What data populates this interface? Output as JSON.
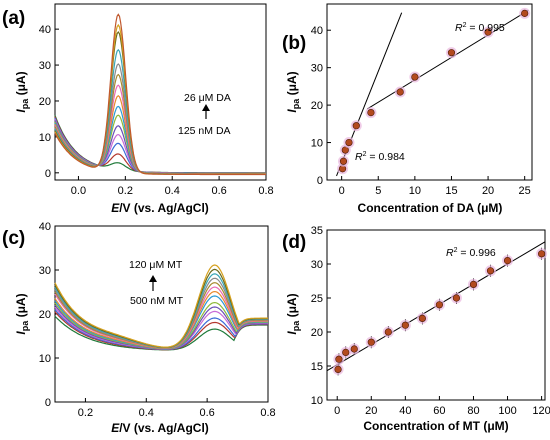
{
  "chart_data": [
    {
      "panel": "(a)",
      "type": "line",
      "xlabel": "E/V (vs. Ag/AgCl)",
      "xlabel_italic": "E",
      "xlabel_rest": "/V (vs. Ag/AgCl)",
      "ylabel": "Ipa (μA)",
      "xlim": [
        -0.1,
        0.8
      ],
      "ylim": [
        -2,
        47
      ],
      "xticks": [
        "0.0",
        "0.2",
        "0.4",
        "0.6",
        "0.8"
      ],
      "yticks": [
        "0",
        "10",
        "20",
        "30",
        "40"
      ],
      "annotations": {
        "top": "26 μM DA",
        "bottom": "125 nM DA"
      },
      "peak_x": 0.17,
      "start_value": 16,
      "colors": [
        "#1f7a3a",
        "#b3372e",
        "#3b6bd6",
        "#c86bd6",
        "#6a4fb6",
        "#8fb93a",
        "#2a9ad6",
        "#e8892e",
        "#e86bb6",
        "#a88a2e",
        "#8a8a8a",
        "#3aa6b6",
        "#6a6a1e",
        "#d6a11e",
        "#c0582e"
      ],
      "peak_values": [
        2,
        4.5,
        7.5,
        10,
        12.5,
        15.5,
        18,
        21,
        24,
        27,
        30,
        34,
        39,
        41,
        44
      ]
    },
    {
      "panel": "(b)",
      "type": "scatter",
      "xlabel": "Concentration of DA (μM)",
      "ylabel": "Ipa (μA)",
      "xlim": [
        -2,
        26
      ],
      "ylim": [
        0,
        47
      ],
      "xticks": [
        "0",
        "5",
        "10",
        "15",
        "20",
        "25"
      ],
      "yticks": [
        "0",
        "10",
        "20",
        "30",
        "40"
      ],
      "points": [
        {
          "x": 0.125,
          "y": 3
        },
        {
          "x": 0.25,
          "y": 5
        },
        {
          "x": 0.5,
          "y": 8
        },
        {
          "x": 1,
          "y": 10
        },
        {
          "x": 2,
          "y": 14.5
        },
        {
          "x": 4,
          "y": 18
        },
        {
          "x": 8,
          "y": 23.5
        },
        {
          "x": 10,
          "y": 27.5
        },
        {
          "x": 15,
          "y": 34
        },
        {
          "x": 20,
          "y": 39.5
        },
        {
          "x": 25,
          "y": 44.5
        }
      ],
      "fit_lines": [
        {
          "x0": -0.7,
          "x1": 8.2,
          "slope": 4.9,
          "intercept": 4.5,
          "r2": "0.984"
        },
        {
          "x0": 3.5,
          "x1": 25.5,
          "slope": 1.197,
          "intercept": 14.78,
          "r2": "0.995"
        }
      ],
      "r2_labels": [
        "R2 = 0.995",
        "R2 = 0.984"
      ]
    },
    {
      "panel": "(c)",
      "type": "line",
      "xlabel": "E/V (vs. Ag/AgCl)",
      "xlabel_italic": "E",
      "xlabel_rest": "/V (vs. Ag/AgCl)",
      "ylabel": "Ipa (μA)",
      "xlim": [
        0.1,
        0.8
      ],
      "ylim": [
        0,
        40
      ],
      "xticks": [
        "0.2",
        "0.4",
        "0.6",
        "0.8"
      ],
      "yticks": [
        "0",
        "10",
        "20",
        "30",
        "40"
      ],
      "annotations": {
        "top": "120 μM MT",
        "bottom": "500 nM MT"
      },
      "peak_x": 0.625,
      "colors": [
        "#1f7a3a",
        "#b3372e",
        "#3b6bd6",
        "#c86bd6",
        "#6a4fb6",
        "#8fb93a",
        "#2a9ad6",
        "#e8892e",
        "#e86bb6",
        "#a88a2e",
        "#8a8a8a",
        "#3aa6b6",
        "#6a6a1e",
        "#d6a11e"
      ],
      "start_values": [
        19,
        20,
        20.5,
        21,
        21.5,
        22,
        22.5,
        23,
        24,
        24.5,
        25,
        25.5,
        26,
        26.5
      ],
      "peak_values": [
        17,
        18.5,
        19.5,
        21,
        22,
        23,
        24.5,
        25.5,
        26.5,
        27.5,
        28.5,
        29.5,
        30.5,
        31.5
      ]
    },
    {
      "panel": "(d)",
      "type": "scatter",
      "xlabel": "Concentration of MT (μM)",
      "ylabel": "Ipa (μA)",
      "xlim": [
        -6,
        122
      ],
      "ylim": [
        10,
        35
      ],
      "xticks": [
        "0",
        "20",
        "40",
        "60",
        "80",
        "100",
        "120"
      ],
      "yticks": [
        "10",
        "15",
        "20",
        "25",
        "30",
        "35"
      ],
      "points": [
        {
          "x": 0.5,
          "y": 14.5
        },
        {
          "x": 1,
          "y": 16
        },
        {
          "x": 5,
          "y": 17
        },
        {
          "x": 10,
          "y": 17.5
        },
        {
          "x": 20,
          "y": 18.5
        },
        {
          "x": 30,
          "y": 20
        },
        {
          "x": 40,
          "y": 21
        },
        {
          "x": 50,
          "y": 22
        },
        {
          "x": 60,
          "y": 24
        },
        {
          "x": 70,
          "y": 25
        },
        {
          "x": 80,
          "y": 27
        },
        {
          "x": 90,
          "y": 29
        },
        {
          "x": 100,
          "y": 30.5
        },
        {
          "x": 120,
          "y": 31.5
        }
      ],
      "fit_lines": [
        {
          "x0": -6,
          "x1": 122,
          "slope": 0.148,
          "intercept": 15.2,
          "r2": "0.996"
        }
      ],
      "r2_labels": [
        "R2 = 0.996"
      ]
    }
  ]
}
